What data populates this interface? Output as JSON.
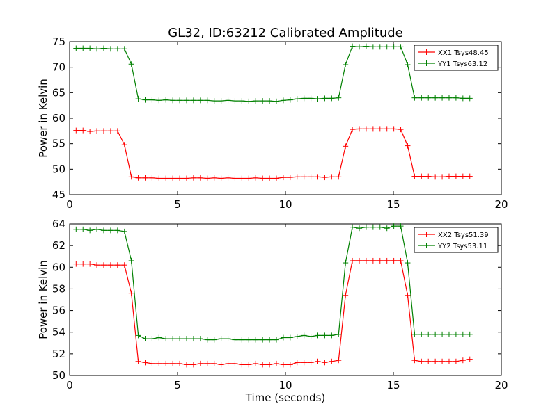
{
  "chart_data": {
    "title": "GL32, ID:63212 Calibrated Amplitude",
    "panels": [
      {
        "type": "line",
        "xlabel": "",
        "ylabel": "Power in Kelvin",
        "xlim": [
          0,
          20
        ],
        "ylim": [
          45,
          75
        ],
        "xticks": [
          "0",
          "5",
          "10",
          "15",
          "20"
        ],
        "yticks": [
          "45",
          "50",
          "55",
          "60",
          "65",
          "70",
          "75"
        ],
        "grid": false,
        "legend": "top-right",
        "series": [
          {
            "name": "XX1 Tsys48.45",
            "color": "#ff0000",
            "x": [
              0.3,
              0.62,
              0.94,
              1.26,
              1.58,
              1.9,
              2.22,
              2.54,
              2.86,
              3.18,
              3.5,
              3.82,
              4.14,
              4.46,
              4.78,
              5.1,
              5.42,
              5.74,
              6.06,
              6.38,
              6.7,
              7.02,
              7.34,
              7.66,
              7.98,
              8.3,
              8.62,
              8.94,
              9.26,
              9.58,
              9.9,
              10.22,
              10.54,
              10.86,
              11.18,
              11.5,
              11.82,
              12.14,
              12.46,
              12.78,
              13.1,
              13.42,
              13.74,
              14.06,
              14.38,
              14.7,
              15.02,
              15.34,
              15.66,
              15.98,
              16.3,
              16.62,
              16.94,
              17.26,
              17.58,
              17.9,
              18.22,
              18.54
            ],
            "y": [
              57.6,
              57.6,
              57.4,
              57.5,
              57.5,
              57.5,
              57.5,
              54.8,
              48.5,
              48.3,
              48.3,
              48.3,
              48.2,
              48.2,
              48.2,
              48.2,
              48.2,
              48.3,
              48.3,
              48.2,
              48.3,
              48.2,
              48.3,
              48.2,
              48.2,
              48.2,
              48.3,
              48.2,
              48.2,
              48.2,
              48.4,
              48.4,
              48.5,
              48.5,
              48.5,
              48.5,
              48.4,
              48.5,
              48.5,
              54.5,
              57.8,
              57.9,
              57.9,
              57.9,
              57.9,
              57.9,
              57.9,
              57.8,
              54.6,
              48.6,
              48.6,
              48.6,
              48.5,
              48.5,
              48.6,
              48.6,
              48.6,
              48.6
            ]
          },
          {
            "name": "YY1 Tsys63.12",
            "color": "#008000",
            "x": [
              0.3,
              0.62,
              0.94,
              1.26,
              1.58,
              1.9,
              2.22,
              2.54,
              2.86,
              3.18,
              3.5,
              3.82,
              4.14,
              4.46,
              4.78,
              5.1,
              5.42,
              5.74,
              6.06,
              6.38,
              6.7,
              7.02,
              7.34,
              7.66,
              7.98,
              8.3,
              8.62,
              8.94,
              9.26,
              9.58,
              9.9,
              10.22,
              10.54,
              10.86,
              11.18,
              11.5,
              11.82,
              12.14,
              12.46,
              12.78,
              13.1,
              13.42,
              13.74,
              14.06,
              14.38,
              14.7,
              15.02,
              15.34,
              15.66,
              15.98,
              16.3,
              16.62,
              16.94,
              17.26,
              17.58,
              17.9,
              18.22,
              18.54
            ],
            "y": [
              73.7,
              73.7,
              73.7,
              73.6,
              73.7,
              73.6,
              73.6,
              73.6,
              70.6,
              63.8,
              63.6,
              63.6,
              63.5,
              63.6,
              63.5,
              63.5,
              63.5,
              63.5,
              63.5,
              63.5,
              63.4,
              63.4,
              63.5,
              63.4,
              63.4,
              63.3,
              63.4,
              63.4,
              63.4,
              63.3,
              63.5,
              63.6,
              63.8,
              63.9,
              63.9,
              63.8,
              63.9,
              63.9,
              64.0,
              70.5,
              74.1,
              74.0,
              74.1,
              74.0,
              74.0,
              74.0,
              74.0,
              74.0,
              70.5,
              64.0,
              64.0,
              64.0,
              64.0,
              64.0,
              64.0,
              64.0,
              63.9,
              63.9
            ]
          }
        ]
      },
      {
        "type": "line",
        "xlabel": "Time (seconds)",
        "ylabel": "Power in Kelvin",
        "xlim": [
          0,
          20
        ],
        "ylim": [
          50,
          64
        ],
        "xticks": [
          "0",
          "5",
          "10",
          "15",
          "20"
        ],
        "yticks": [
          "50",
          "52",
          "54",
          "56",
          "58",
          "60",
          "62",
          "64"
        ],
        "grid": false,
        "legend": "top-right",
        "series": [
          {
            "name": "XX2 Tsys51.39",
            "color": "#ff0000",
            "x": [
              0.3,
              0.62,
              0.94,
              1.26,
              1.58,
              1.9,
              2.22,
              2.54,
              2.86,
              3.18,
              3.5,
              3.82,
              4.14,
              4.46,
              4.78,
              5.1,
              5.42,
              5.74,
              6.06,
              6.38,
              6.7,
              7.02,
              7.34,
              7.66,
              7.98,
              8.3,
              8.62,
              8.94,
              9.26,
              9.58,
              9.9,
              10.22,
              10.54,
              10.86,
              11.18,
              11.5,
              11.82,
              12.14,
              12.46,
              12.78,
              13.1,
              13.42,
              13.74,
              14.06,
              14.38,
              14.7,
              15.02,
              15.34,
              15.66,
              15.98,
              16.3,
              16.62,
              16.94,
              17.26,
              17.58,
              17.9,
              18.22,
              18.54
            ],
            "y": [
              60.3,
              60.3,
              60.3,
              60.2,
              60.2,
              60.2,
              60.2,
              60.2,
              57.6,
              51.3,
              51.2,
              51.1,
              51.1,
              51.1,
              51.1,
              51.1,
              51.0,
              51.0,
              51.1,
              51.1,
              51.1,
              51.0,
              51.1,
              51.1,
              51.0,
              51.0,
              51.1,
              51.0,
              51.0,
              51.1,
              51.0,
              51.0,
              51.2,
              51.2,
              51.2,
              51.3,
              51.2,
              51.3,
              51.4,
              57.4,
              60.6,
              60.6,
              60.6,
              60.6,
              60.6,
              60.6,
              60.6,
              60.6,
              57.4,
              51.4,
              51.3,
              51.3,
              51.3,
              51.3,
              51.3,
              51.3,
              51.4,
              51.5
            ]
          },
          {
            "name": "YY2 Tsys53.11",
            "color": "#008000",
            "x": [
              0.3,
              0.62,
              0.94,
              1.26,
              1.58,
              1.9,
              2.22,
              2.54,
              2.86,
              3.18,
              3.5,
              3.82,
              4.14,
              4.46,
              4.78,
              5.1,
              5.42,
              5.74,
              6.06,
              6.38,
              6.7,
              7.02,
              7.34,
              7.66,
              7.98,
              8.3,
              8.62,
              8.94,
              9.26,
              9.58,
              9.9,
              10.22,
              10.54,
              10.86,
              11.18,
              11.5,
              11.82,
              12.14,
              12.46,
              12.78,
              13.1,
              13.42,
              13.74,
              14.06,
              14.38,
              14.7,
              15.02,
              15.34,
              15.66,
              15.98,
              16.3,
              16.62,
              16.94,
              17.26,
              17.58,
              17.9,
              18.22,
              18.54
            ],
            "y": [
              63.5,
              63.5,
              63.4,
              63.5,
              63.4,
              63.4,
              63.4,
              63.3,
              60.6,
              53.7,
              53.4,
              53.4,
              53.5,
              53.4,
              53.4,
              53.4,
              53.4,
              53.4,
              53.4,
              53.3,
              53.3,
              53.4,
              53.4,
              53.3,
              53.3,
              53.3,
              53.3,
              53.3,
              53.3,
              53.3,
              53.5,
              53.5,
              53.6,
              53.7,
              53.6,
              53.7,
              53.7,
              53.7,
              53.8,
              60.4,
              63.7,
              63.6,
              63.7,
              63.7,
              63.7,
              63.6,
              63.8,
              63.8,
              60.4,
              53.8,
              53.8,
              53.8,
              53.8,
              53.8,
              53.8,
              53.8,
              53.8,
              53.8
            ]
          }
        ]
      }
    ]
  }
}
